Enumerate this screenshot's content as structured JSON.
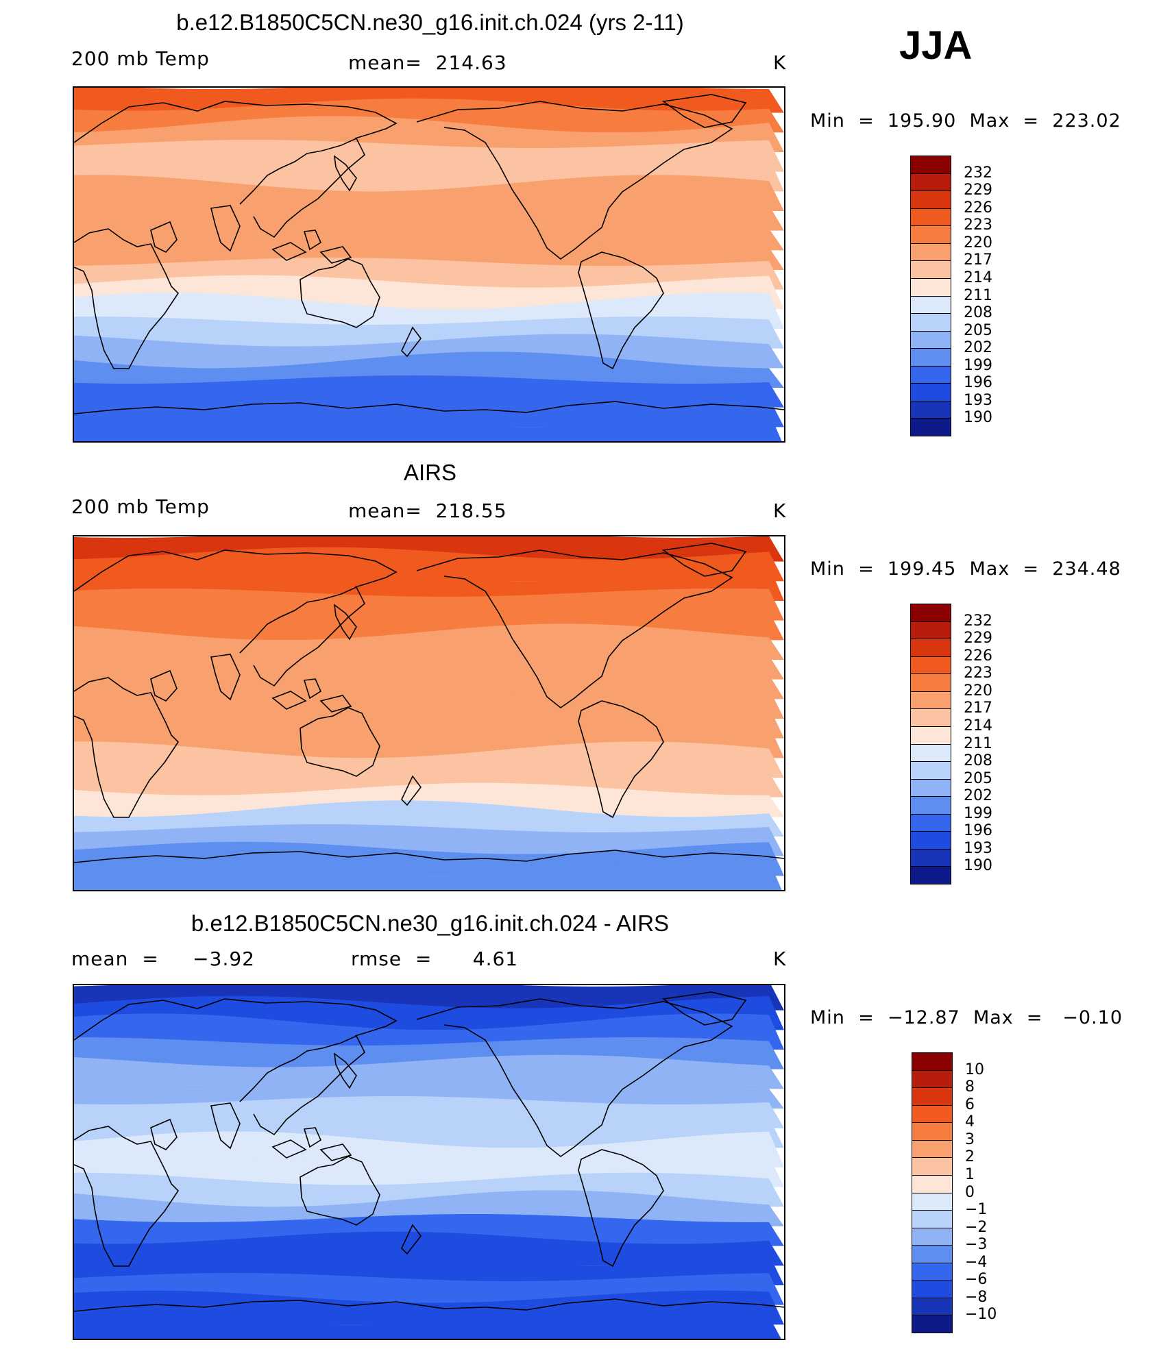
{
  "season": "JJA",
  "panels": [
    {
      "title": "b.e12.B1850C5CN.ne30_g16.init.ch.024 (yrs 2-11)",
      "left_label": "200 mb Temp",
      "center_label": "mean=  214.63",
      "right_label": "K",
      "minmax": "Min  =  195.90  Max  =  223.02",
      "colorbar": {
        "labels": [
          "232",
          "229",
          "226",
          "223",
          "220",
          "217",
          "214",
          "211",
          "208",
          "205",
          "202",
          "199",
          "196",
          "193",
          "190"
        ],
        "colors": [
          "#8b0000",
          "#b81c0b",
          "#d9350f",
          "#f05a1e",
          "#f77c40",
          "#f9a06f",
          "#fbc3a2",
          "#fde6d7",
          "#dbe9fb",
          "#b8d2f9",
          "#8fb3f5",
          "#5e8ef0",
          "#3466ee",
          "#1e4be0",
          "#1834b8",
          "#0e1a8a"
        ]
      },
      "bands": [
        "#f05a1e",
        "#f77c40",
        "#f9a06f",
        "#fbc3a2",
        "#fbc3a2",
        "#f9a06f",
        "#f9a06f",
        "#f9a06f",
        "#f9a06f",
        "#fbc3a2",
        "#fde6d7",
        "#dbe9fb",
        "#b8d2f9",
        "#8fb3f5",
        "#5e8ef0",
        "#3466ee",
        "#3466ee",
        "#3466ee"
      ]
    },
    {
      "title": "AIRS",
      "left_label": "200 mb Temp",
      "center_label": "mean=  218.55",
      "right_label": "K",
      "minmax": "Min  =  199.45  Max  =  234.48",
      "colorbar": {
        "labels": [
          "232",
          "229",
          "226",
          "223",
          "220",
          "217",
          "214",
          "211",
          "208",
          "205",
          "202",
          "199",
          "196",
          "193",
          "190"
        ],
        "colors": [
          "#8b0000",
          "#b81c0b",
          "#d9350f",
          "#f05a1e",
          "#f77c40",
          "#f9a06f",
          "#fbc3a2",
          "#fde6d7",
          "#dbe9fb",
          "#b8d2f9",
          "#8fb3f5",
          "#5e8ef0",
          "#3466ee",
          "#1e4be0",
          "#1834b8",
          "#0e1a8a"
        ]
      },
      "bands": [
        "#d9350f",
        "#f05a1e",
        "#f05a1e",
        "#f77c40",
        "#f77c40",
        "#f9a06f",
        "#f9a06f",
        "#f9a06f",
        "#f9a06f",
        "#f9a06f",
        "#f9a06f",
        "#fbc3a2",
        "#fbc3a2",
        "#fde6d7",
        "#b8d2f9",
        "#8fb3f5",
        "#5e8ef0",
        "#5e8ef0"
      ]
    },
    {
      "title": "b.e12.B1850C5CN.ne30_g16.init.ch.024 - AIRS",
      "left_label": "mean  =     −3.92",
      "center_label": "rmse  =      4.61",
      "right_label": "K",
      "minmax": "Min  =  −12.87  Max  =   −0.10",
      "colorbar": {
        "labels": [
          "10",
          "8",
          "6",
          "4",
          "3",
          "2",
          "1",
          "0",
          "−1",
          "−2",
          "−3",
          "−4",
          "−6",
          "−8",
          "−10"
        ],
        "colors": [
          "#8b0000",
          "#b81c0b",
          "#d9350f",
          "#f05a1e",
          "#f77c40",
          "#f9a06f",
          "#fbc3a2",
          "#fde6d7",
          "#dbe9fb",
          "#b8d2f9",
          "#8fb3f5",
          "#5e8ef0",
          "#3466ee",
          "#1e4be0",
          "#1834b8",
          "#0e1a8a"
        ]
      },
      "bands": [
        "#1834b8",
        "#1e4be0",
        "#3466ee",
        "#5e8ef0",
        "#8fb3f5",
        "#8fb3f5",
        "#b8d2f9",
        "#b8d2f9",
        "#dbe9fb",
        "#dbe9fb",
        "#b8d2f9",
        "#8fb3f5",
        "#3466ee",
        "#1e4be0",
        "#1e4be0",
        "#3466ee",
        "#1e4be0",
        "#1e4be0"
      ]
    }
  ]
}
